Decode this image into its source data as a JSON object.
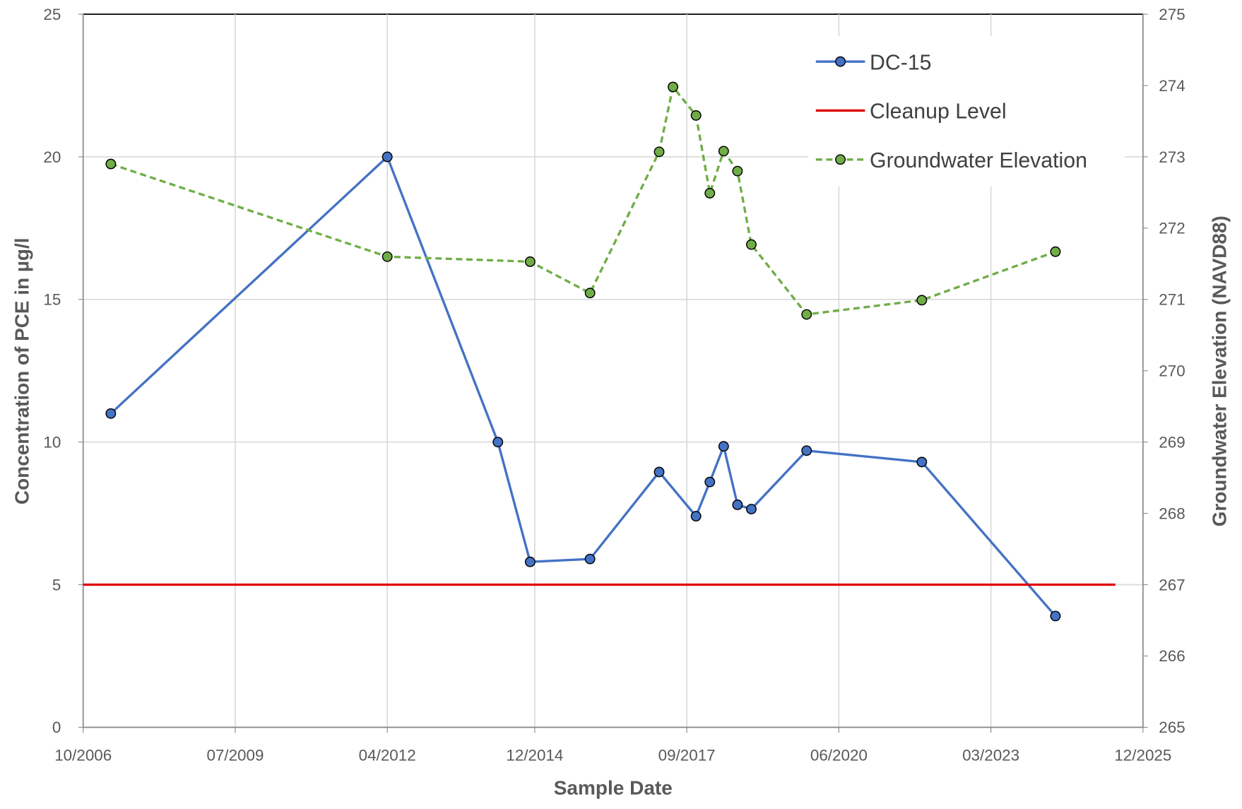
{
  "chart_data": {
    "type": "line",
    "xlabel": "Sample Date",
    "ylabel": "Concentration of PCE in µg/l",
    "y2label": "Groundwater Elevation (NAVD88)",
    "xlim": [
      "2006-10",
      "2025-12"
    ],
    "xticks": [
      {
        "value": "2006-10",
        "label": "10/2006"
      },
      {
        "value": "2009-07",
        "label": "07/2009"
      },
      {
        "value": "2012-04",
        "label": "04/2012"
      },
      {
        "value": "2014-12",
        "label": "12/2014"
      },
      {
        "value": "2017-09",
        "label": "09/2017"
      },
      {
        "value": "2020-06",
        "label": "06/2020"
      },
      {
        "value": "2023-03",
        "label": "03/2023"
      },
      {
        "value": "2025-12",
        "label": "12/2025"
      }
    ],
    "ylim": [
      0,
      25
    ],
    "yticks": [
      0,
      5,
      10,
      15,
      20,
      25
    ],
    "y2lim": [
      265,
      275
    ],
    "y2ticks": [
      265,
      266,
      267,
      268,
      269,
      270,
      271,
      272,
      273,
      274,
      275
    ],
    "grid": true,
    "legend": "upper right",
    "series": [
      {
        "name": "DC-15",
        "color": "#4472c4",
        "marker": true,
        "dashed": false,
        "x": [
          "2007-04",
          "2012-04",
          "2014-04",
          "2014-11",
          "2015-12",
          "2017-03",
          "2017-11",
          "2018-02",
          "2018-05",
          "2018-08",
          "2018-11",
          "2019-11",
          "2021-12",
          "2024-05"
        ],
        "values": [
          11,
          20,
          10,
          5.8,
          5.9,
          8.95,
          7.4,
          8.6,
          9.85,
          7.8,
          7.65,
          9.7,
          9.3,
          3.9
        ]
      },
      {
        "name": "Cleanup Level",
        "color": "#e00000",
        "marker": false,
        "dashed": false,
        "x": [
          "2006-10",
          "2025-06"
        ],
        "values": [
          5,
          5
        ]
      },
      {
        "name": "Groundwater Elevation",
        "color": "#70ad47",
        "marker": true,
        "dashed": true,
        "axis": "y2",
        "x": [
          "2007-04",
          "2012-04",
          "2014-11",
          "2015-12",
          "2017-03",
          "2017-06",
          "2017-11",
          "2018-02",
          "2018-05",
          "2018-08",
          "2018-11",
          "2019-11",
          "2021-12",
          "2024-05"
        ],
        "values": [
          272.9,
          271.6,
          271.53,
          271.09,
          273.07,
          273.98,
          273.58,
          272.49,
          273.08,
          272.8,
          271.77,
          270.79,
          270.99,
          271.67
        ]
      }
    ]
  }
}
